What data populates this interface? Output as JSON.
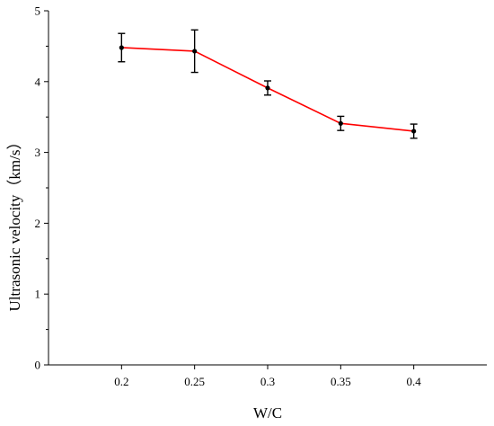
{
  "chart_data": {
    "type": "line",
    "title": "",
    "xlabel": "W/C",
    "ylabel": "Ultrasonic velocity（km/s）",
    "x": [
      0.2,
      0.25,
      0.3,
      0.35,
      0.4
    ],
    "x_tick_labels": [
      "0.2",
      "0.25",
      "0.3",
      "0.35",
      "0.4"
    ],
    "xlim": [
      0.15,
      0.45
    ],
    "ylim": [
      0,
      5
    ],
    "y_ticks": [
      0,
      1,
      2,
      3,
      4,
      5
    ],
    "y_tick_labels": [
      "0",
      "1",
      "2",
      "3",
      "4",
      "5"
    ],
    "grid": false,
    "legend": "none",
    "series": [
      {
        "values": [
          4.48,
          4.43,
          3.91,
          3.41,
          3.3
        ],
        "error": [
          0.2,
          0.3,
          0.1,
          0.1,
          0.1
        ],
        "line_color": "#ff0000",
        "marker_color": "#000000"
      }
    ]
  }
}
